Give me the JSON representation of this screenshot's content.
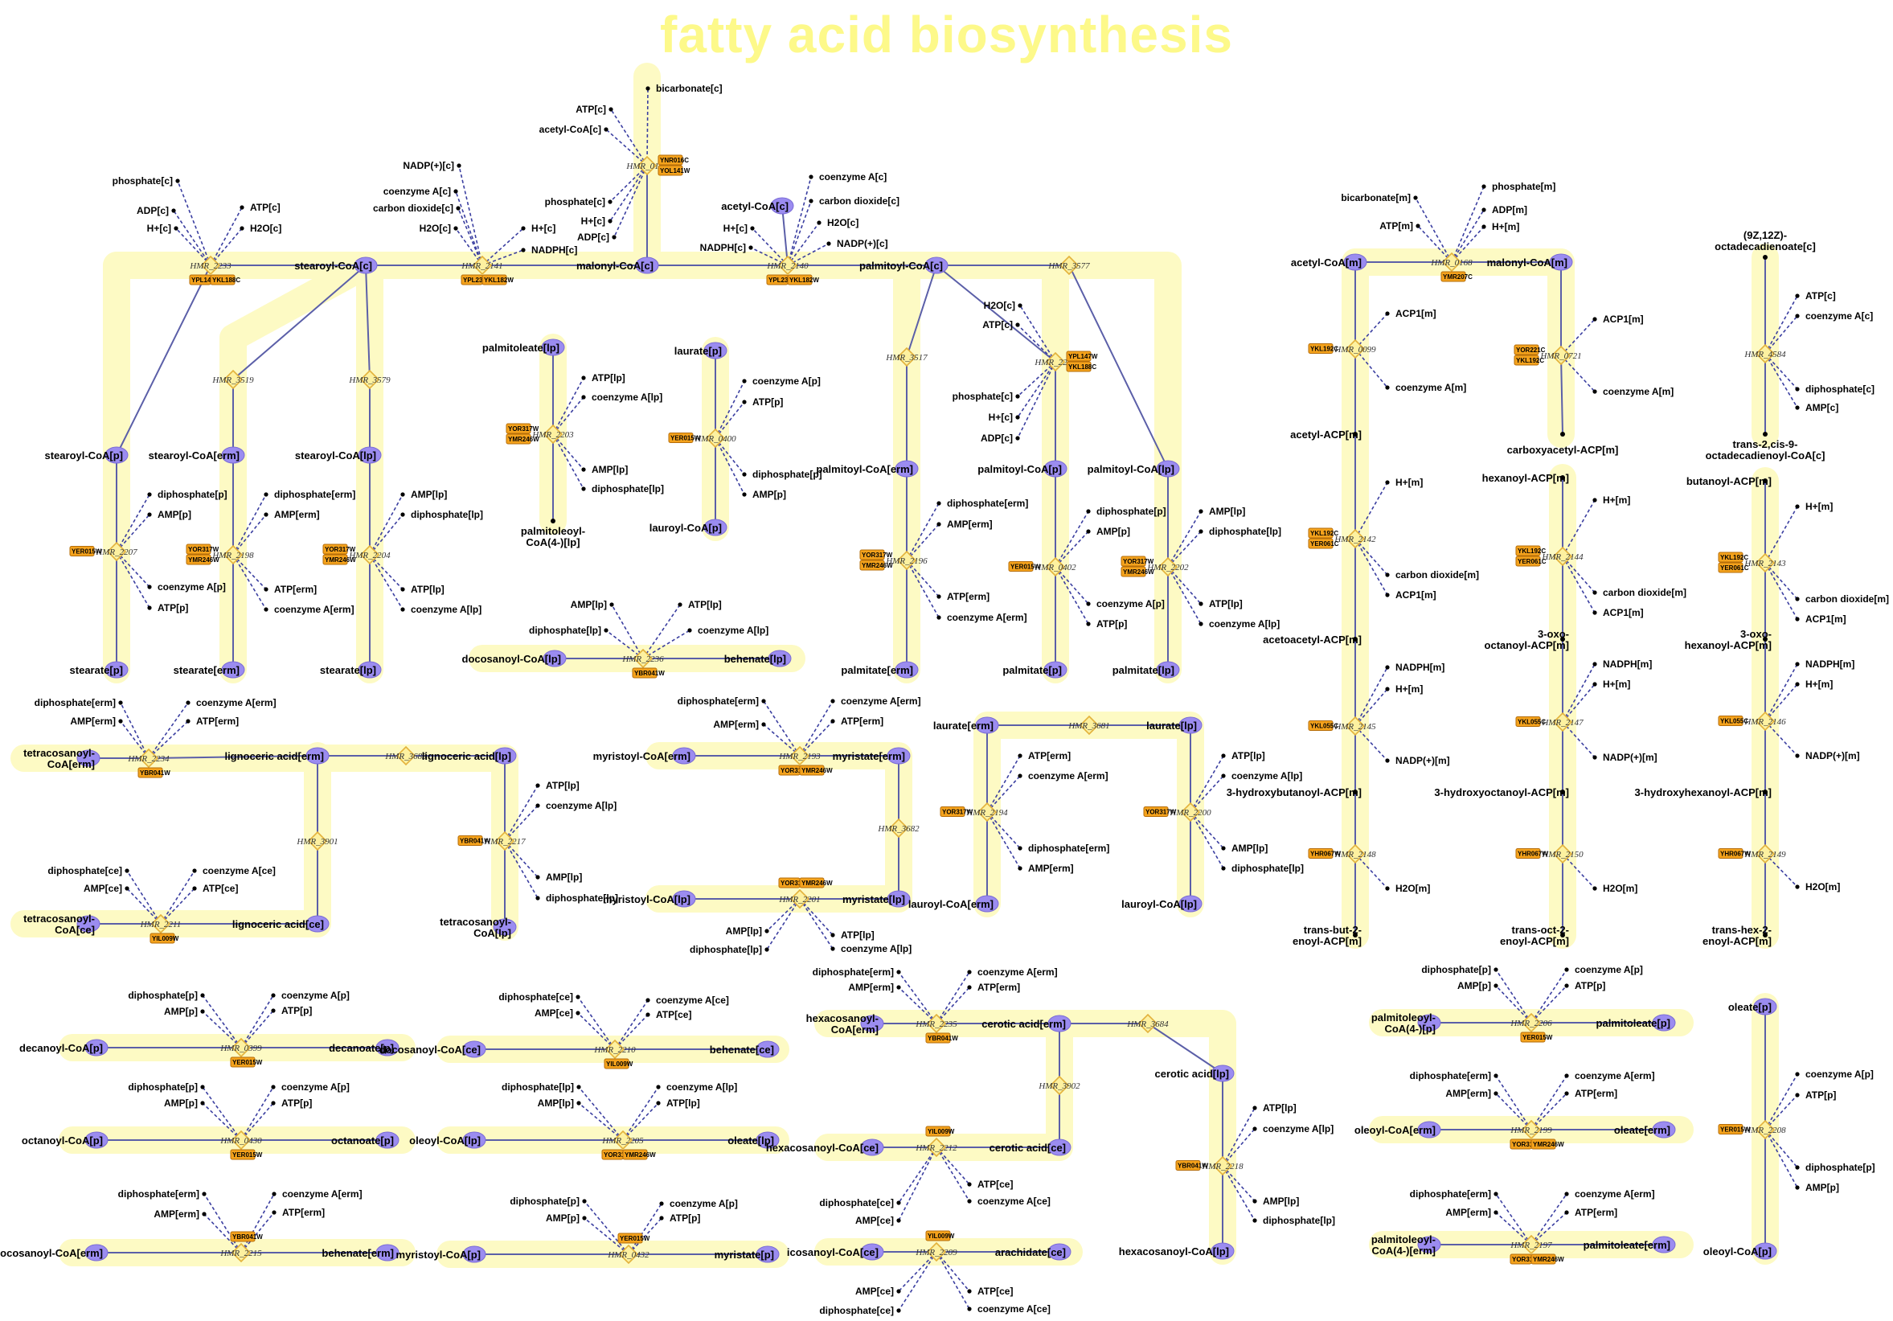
{
  "title": "fatty acid biosynthesis",
  "colors": {
    "highlight": "#fdfac4",
    "metabolite": "#9b8cf0",
    "reaction": "#fdf1a0",
    "gene": "#f4a21c",
    "edge": "#5b5fa8",
    "title": "#fdf98a"
  },
  "metabolites": [
    {
      "id": "stearoylCoA_c",
      "label": "stearoyl-CoA[c]"
    },
    {
      "id": "malonylCoA_c",
      "label": "malonyl-CoA[c]"
    },
    {
      "id": "palmitoylCoA_c",
      "label": "palmitoyl-CoA[c]"
    },
    {
      "id": "stearoylCoA_p",
      "label": "stearoyl-CoA[p]"
    },
    {
      "id": "stearoylCoA_erm",
      "label": "stearoyl-CoA[erm]"
    },
    {
      "id": "stearoylCoA_lp",
      "label": "stearoyl-CoA[lp]"
    },
    {
      "id": "stearate_p",
      "label": "stearate[p]"
    },
    {
      "id": "stearate_erm",
      "label": "stearate[erm]"
    },
    {
      "id": "stearate_lp",
      "label": "stearate[lp]"
    },
    {
      "id": "palmitoleate_lp",
      "label": "palmitoleate[lp]"
    },
    {
      "id": "palmitoleoylCoA_lp",
      "label": "palmitoleoyl-CoA(4-)[lp]"
    },
    {
      "id": "laurate_p",
      "label": "laurate[p]"
    },
    {
      "id": "lauroylCoA_p",
      "label": "lauroyl-CoA[p]"
    },
    {
      "id": "acetylCoA_c",
      "label": "acetyl-CoA[c]"
    },
    {
      "id": "palmitoylCoA_erm",
      "label": "palmitoyl-CoA[erm]"
    },
    {
      "id": "palmitoylCoA_p",
      "label": "palmitoyl-CoA[p]"
    },
    {
      "id": "palmitoylCoA_lp",
      "label": "palmitoyl-CoA[lp]"
    },
    {
      "id": "palmitate_erm",
      "label": "palmitate[erm]"
    },
    {
      "id": "palmitate_p",
      "label": "palmitate[p]"
    },
    {
      "id": "palmitate_lp",
      "label": "palmitate[lp]"
    },
    {
      "id": "docosanoylCoA_lp",
      "label": "docosanoyl-CoA[lp]"
    },
    {
      "id": "behenate_lp",
      "label": "behenate[lp]"
    },
    {
      "id": "acetylCoA_m",
      "label": "acetyl-CoA[m]"
    },
    {
      "id": "malonylCoA_m",
      "label": "malonyl-CoA[m]"
    },
    {
      "id": "tetracosanoylCoA_erm",
      "label": "tetracosanoyl-CoA[erm]"
    },
    {
      "id": "lignoceric_erm",
      "label": "lignoceric acid[erm]"
    },
    {
      "id": "lignoceric_lp",
      "label": "lignoceric acid[lp]"
    },
    {
      "id": "tetracosanoylCoA_lp",
      "label": "tetracosanoyl-CoA[lp]"
    },
    {
      "id": "tetracosanoylCoA_ce",
      "label": "tetracosanoyl-CoA[ce]"
    },
    {
      "id": "lignoceric_ce",
      "label": "lignoceric acid[ce]"
    },
    {
      "id": "myristoylCoA_erm",
      "label": "myristoyl-CoA[erm]"
    },
    {
      "id": "myristate_erm",
      "label": "myristate[erm]"
    },
    {
      "id": "myristoylCoA_lp",
      "label": "myristoyl-CoA[lp]"
    },
    {
      "id": "myristate_lp",
      "label": "myristate[lp]"
    },
    {
      "id": "laurate_erm",
      "label": "laurate[erm]"
    },
    {
      "id": "laurate_lp",
      "label": "laurate[lp]"
    },
    {
      "id": "lauroylCoA_erm",
      "label": "lauroyl-CoA[erm]"
    },
    {
      "id": "lauroylCoA_lp",
      "label": "lauroyl-CoA[lp]"
    },
    {
      "id": "decanoylCoA_p",
      "label": "decanoyl-CoA[p]"
    },
    {
      "id": "decanoate_p",
      "label": "decanoate[p]"
    },
    {
      "id": "octanoylCoA_p",
      "label": "octanoyl-CoA[p]"
    },
    {
      "id": "octanoate_p",
      "label": "octanoate[p]"
    },
    {
      "id": "docosanoylCoA_erm",
      "label": "docosanoyl-CoA[erm]"
    },
    {
      "id": "behenate_erm",
      "label": "behenate[erm]"
    },
    {
      "id": "docosanoylCoA_ce",
      "label": "docosanoyl-CoA[ce]"
    },
    {
      "id": "behenate_ce",
      "label": "behenate[ce]"
    },
    {
      "id": "oleoylCoA_lp",
      "label": "oleoyl-CoA[lp]"
    },
    {
      "id": "oleate_lp",
      "label": "oleate[lp]"
    },
    {
      "id": "myristoylCoA_p",
      "label": "myristoyl-CoA[p]"
    },
    {
      "id": "myristate_p",
      "label": "myristate[p]"
    },
    {
      "id": "hexacosanoylCoA_erm",
      "label": "hexacosanoyl-CoA[erm]"
    },
    {
      "id": "cerotic_erm",
      "label": "cerotic acid[erm]"
    },
    {
      "id": "cerotic_lp",
      "label": "cerotic acid[lp]"
    },
    {
      "id": "hexacosanoylCoA_ce",
      "label": "hexacosanoyl-CoA[ce]"
    },
    {
      "id": "cerotic_ce",
      "label": "cerotic acid[ce]"
    },
    {
      "id": "hexacosanoylCoA_lp",
      "label": "hexacosanoyl-CoA[lp]"
    },
    {
      "id": "icosanoylCoA_ce",
      "label": "icosanoyl-CoA[ce]"
    },
    {
      "id": "arachidate_ce",
      "label": "arachidate[ce]"
    },
    {
      "id": "palmitoleoylCoA_p",
      "label": "palmitoleoyl-CoA(4-)[p]"
    },
    {
      "id": "palmitoleate_p",
      "label": "palmitoleate[p]"
    },
    {
      "id": "oleoylCoA_erm",
      "label": "oleoyl-CoA[erm]"
    },
    {
      "id": "oleate_erm",
      "label": "oleate[erm]"
    },
    {
      "id": "palmitoleoylCoA_erm",
      "label": "palmitoleoyl-CoA(4-)[erm]"
    },
    {
      "id": "palmitoleate_erm",
      "label": "palmitoleate[erm]"
    },
    {
      "id": "oleate_p",
      "label": "oleate[p]"
    },
    {
      "id": "oleoylCoA_p",
      "label": "oleoyl-CoA[p]"
    },
    {
      "id": "acetylACP_m",
      "label": "acetyl-ACP[m]"
    },
    {
      "id": "carboxyacetylACP_m1",
      "label": "carboxyacetyl-ACP[m]"
    },
    {
      "id": "acetoacetylACP_m",
      "label": "acetoacetyl-ACP[m]"
    },
    {
      "id": "hydroxybutanoylACP_m",
      "label": "3-hydroxybutanoyl-ACP[m]"
    },
    {
      "id": "transbut2enoylACP_m",
      "label": "trans-but-2-enoyl-ACP[m]"
    },
    {
      "id": "hexanoylACP_m",
      "label": "hexanoyl-ACP[m]"
    },
    {
      "id": "oxooctanoylACP_m",
      "label": "3-oxo-octanoyl-ACP[m]"
    },
    {
      "id": "hydroxyoctanoylACP_m",
      "label": "3-hydroxyoctanoyl-ACP[m]"
    },
    {
      "id": "transoct2enoylACP_m",
      "label": "trans-oct-2-enoyl-ACP[m]"
    },
    {
      "id": "butanoylACP_m",
      "label": "butanoyl-ACP[m]"
    },
    {
      "id": "oxohexanoylACP_m",
      "label": "3-oxo-hexanoyl-ACP[m]"
    },
    {
      "id": "hydroxyhexanoylACP_m",
      "label": "3-hydroxyhexanoyl-ACP[m]"
    },
    {
      "id": "transhex2enoylACP_m",
      "label": "trans-hex-2-enoyl-ACP[m]"
    },
    {
      "id": "octadecadienoate_c",
      "label": "(9Z,12Z)-octadecadienoate[c]"
    },
    {
      "id": "octadecadienoylCoA_c",
      "label": "trans-2,cis-9-octadecadienoyl-CoA[c]"
    }
  ],
  "reactions": [
    {
      "id": "HMR_0109",
      "label": "HMR_0109",
      "genes": [
        "YNR016C",
        "YOL141W"
      ],
      "side": [
        "bicarbonate[c]",
        "ATP[c]",
        "acetyl-CoA[c]",
        "phosphate[c]",
        "H+[c]",
        "ADP[c]"
      ]
    },
    {
      "id": "HMR_2233",
      "label": "HMR_2233",
      "genes": [
        "YPL147W",
        "YKL188C"
      ],
      "side": [
        "phosphate[c]",
        "ADP[c]",
        "H+[c]",
        "ATP[c]",
        "H2O[c]"
      ]
    },
    {
      "id": "HMR_2141",
      "label": "HMR_2141",
      "genes": [
        "YPL231W",
        "YKL182W"
      ],
      "side": [
        "NADP(+)[c]",
        "coenzyme A[c]",
        "carbon dioxide[c]",
        "H2O[c]",
        "H+[c]",
        "NADPH[c]"
      ]
    },
    {
      "id": "HMR_2140",
      "label": "HMR_2140",
      "genes": [
        "YPL231W",
        "YKL182W"
      ],
      "side": [
        "coenzyme A[c]",
        "carbon dioxide[c]",
        "H2O[c]",
        "NADP(+)[c]",
        "H+[c]",
        "NADPH[c]"
      ]
    },
    {
      "id": "HMR_3577",
      "label": "HMR_3577",
      "genes": [],
      "side": []
    },
    {
      "id": "HMR_3519",
      "label": "HMR_3519",
      "genes": [],
      "side": []
    },
    {
      "id": "HMR_3579",
      "label": "HMR_3579",
      "genes": [],
      "side": []
    },
    {
      "id": "HMR_3517",
      "label": "HMR_3517",
      "genes": [],
      "side": []
    },
    {
      "id": "HMR_2221",
      "label": "HMR_2221",
      "genes": [
        "YPL147W",
        "YKL188C"
      ],
      "side": [
        "H2O[c]",
        "ATP[c]",
        "phosphate[c]",
        "H+[c]",
        "ADP[c]"
      ]
    },
    {
      "id": "HMR_2203",
      "label": "HMR_2203",
      "genes": [
        "YOR317W",
        "YMR246W"
      ],
      "side": [
        "ATP[lp]",
        "coenzyme A[lp]",
        "AMP[lp]",
        "diphosphate[lp]"
      ]
    },
    {
      "id": "HMR_0400",
      "label": "HMR_0400",
      "genes": [
        "YER015W"
      ],
      "side": [
        "coenzyme A[p]",
        "ATP[p]",
        "diphosphate[p]",
        "AMP[p]"
      ]
    },
    {
      "id": "HMR_2207",
      "label": "HMR_2207",
      "genes": [
        "YER015W"
      ],
      "side": [
        "diphosphate[p]",
        "AMP[p]",
        "coenzyme A[p]",
        "ATP[p]"
      ]
    },
    {
      "id": "HMR_2198",
      "label": "HMR_2198",
      "genes": [
        "YOR317W",
        "YMR246W"
      ],
      "side": [
        "diphosphate[erm]",
        "AMP[erm]",
        "ATP[erm]",
        "coenzyme A[erm]"
      ]
    },
    {
      "id": "HMR_2204",
      "label": "HMR_2204",
      "genes": [
        "YOR317W",
        "YMR246W"
      ],
      "side": [
        "AMP[lp]",
        "diphosphate[lp]",
        "ATP[lp]",
        "coenzyme A[lp]"
      ]
    },
    {
      "id": "HMR_2196",
      "label": "HMR_2196",
      "genes": [
        "YOR317W",
        "YMR246W"
      ],
      "side": [
        "diphosphate[erm]",
        "AMP[erm]",
        "ATP[erm]",
        "coenzyme A[erm]"
      ]
    },
    {
      "id": "HMR_0402",
      "label": "HMR_0402",
      "genes": [
        "YER015W"
      ],
      "side": [
        "diphosphate[p]",
        "AMP[p]",
        "coenzyme A[p]",
        "ATP[p]"
      ]
    },
    {
      "id": "HMR_2202",
      "label": "HMR_2202",
      "genes": [
        "YOR317W",
        "YMR246W"
      ],
      "side": [
        "AMP[lp]",
        "diphosphate[lp]",
        "ATP[lp]",
        "coenzyme A[lp]"
      ]
    },
    {
      "id": "HMR_2236",
      "label": "HMR_2236",
      "genes": [
        "YBR041W"
      ],
      "side": [
        "AMP[lp]",
        "diphosphate[lp]",
        "ATP[lp]",
        "coenzyme A[lp]"
      ]
    },
    {
      "id": "HMR_0168",
      "label": "HMR_0168",
      "genes": [
        "YMR207C"
      ],
      "side": [
        "bicarbonate[m]",
        "ATP[m]",
        "phosphate[m]",
        "ADP[m]",
        "H+[m]"
      ]
    },
    {
      "id": "HMR_0099",
      "label": "HMR_0099",
      "genes": [
        "YKL192C"
      ],
      "side": [
        "ACP1[m]",
        "coenzyme A[m]"
      ]
    },
    {
      "id": "HMR_0721",
      "label": "HMR_0721",
      "genes": [
        "YOR221C",
        "YKL192C"
      ],
      "side": [
        "ACP1[m]",
        "coenzyme A[m]"
      ]
    },
    {
      "id": "HMR_4584",
      "label": "HMR_4584",
      "genes": [],
      "side": [
        "ATP[c]",
        "coenzyme A[c]",
        "diphosphate[c]",
        "AMP[c]"
      ]
    },
    {
      "id": "HMR_2142",
      "label": "HMR_2142",
      "genes": [
        "YKL192C",
        "YER061C"
      ],
      "side": [
        "H+[m]",
        "carbon dioxide[m]",
        "ACP1[m]"
      ]
    },
    {
      "id": "HMR_2144",
      "label": "HMR_2144",
      "genes": [
        "YKL192C",
        "YER061C"
      ],
      "side": [
        "H+[m]",
        "carbon dioxide[m]",
        "ACP1[m]"
      ]
    },
    {
      "id": "HMR_2143",
      "label": "HMR_2143",
      "genes": [
        "YKL192C",
        "YER061C"
      ],
      "side": [
        "H+[m]",
        "carbon dioxide[m]",
        "ACP1[m]"
      ]
    },
    {
      "id": "HMR_2145",
      "label": "HMR_2145",
      "genes": [
        "YKL055C"
      ],
      "side": [
        "NADPH[m]",
        "H+[m]",
        "NADP(+)[m]"
      ]
    },
    {
      "id": "HMR_2147",
      "label": "HMR_2147",
      "genes": [
        "YKL055C"
      ],
      "side": [
        "NADPH[m]",
        "H+[m]",
        "NADP(+)[m]"
      ]
    },
    {
      "id": "HMR_2146",
      "label": "HMR_2146",
      "genes": [
        "YKL055C"
      ],
      "side": [
        "NADPH[m]",
        "H+[m]",
        "NADP(+)[m]"
      ]
    },
    {
      "id": "HMR_2148",
      "label": "HMR_2148",
      "genes": [
        "YHR067W"
      ],
      "side": [
        "H2O[m]"
      ]
    },
    {
      "id": "HMR_2150",
      "label": "HMR_2150",
      "genes": [
        "YHR067W"
      ],
      "side": [
        "H2O[m]"
      ]
    },
    {
      "id": "HMR_2149",
      "label": "HMR_2149",
      "genes": [
        "YHR067W"
      ],
      "side": [
        "H2O[m]"
      ]
    },
    {
      "id": "HMR_2234",
      "label": "HMR_2234",
      "genes": [
        "YBR041W"
      ],
      "side": [
        "diphosphate[erm]",
        "AMP[erm]",
        "coenzyme A[erm]",
        "ATP[erm]"
      ]
    },
    {
      "id": "HMR_3683",
      "label": "HMR_3683",
      "genes": [],
      "side": []
    },
    {
      "id": "HMR_3901",
      "label": "HMR_3901",
      "genes": [],
      "side": []
    },
    {
      "id": "HMR_2217",
      "label": "HMR_2217",
      "genes": [
        "YBR041W"
      ],
      "side": [
        "ATP[lp]",
        "coenzyme A[lp]",
        "AMP[lp]",
        "diphosphate[lp]"
      ]
    },
    {
      "id": "HMR_2211",
      "label": "HMR_2211",
      "genes": [
        "YIL009W"
      ],
      "side": [
        "diphosphate[ce]",
        "AMP[ce]",
        "coenzyme A[ce]",
        "ATP[ce]"
      ]
    },
    {
      "id": "HMR_2193",
      "label": "HMR_2193",
      "genes": [
        "YOR317W",
        "YMR246W"
      ],
      "side": [
        "diphosphate[erm]",
        "AMP[erm]",
        "coenzyme A[erm]",
        "ATP[erm]"
      ]
    },
    {
      "id": "HMR_3682",
      "label": "HMR_3682",
      "genes": [],
      "side": []
    },
    {
      "id": "HMR_2201",
      "label": "HMR_2201",
      "genes": [
        "YOR317W",
        "YMR246W"
      ],
      "side": [
        "AMP[lp]",
        "diphosphate[lp]",
        "ATP[lp]",
        "coenzyme A[lp]"
      ]
    },
    {
      "id": "HMR_3681",
      "label": "HMR_3681",
      "genes": [],
      "side": []
    },
    {
      "id": "HMR_2194",
      "label": "HMR_2194",
      "genes": [
        "YOR317W"
      ],
      "side": [
        "ATP[erm]",
        "coenzyme A[erm]",
        "diphosphate[erm]",
        "AMP[erm]"
      ]
    },
    {
      "id": "HMR_2200",
      "label": "HMR_2200",
      "genes": [
        "YOR317W"
      ],
      "side": [
        "ATP[lp]",
        "coenzyme A[lp]",
        "AMP[lp]",
        "diphosphate[lp]"
      ]
    },
    {
      "id": "HMR_0399",
      "label": "HMR_0399",
      "genes": [
        "YER015W"
      ],
      "side": [
        "diphosphate[p]",
        "AMP[p]",
        "coenzyme A[p]",
        "ATP[p]"
      ]
    },
    {
      "id": "HMR_0430",
      "label": "HMR_0430",
      "genes": [
        "YER015W"
      ],
      "side": [
        "diphosphate[p]",
        "AMP[p]",
        "coenzyme A[p]",
        "ATP[p]"
      ]
    },
    {
      "id": "HMR_2235",
      "label": "HMR_2235",
      "genes": [
        "YBR041W"
      ],
      "side": [
        "diphosphate[erm]",
        "AMP[erm]",
        "coenzyme A[erm]",
        "ATP[erm]"
      ]
    },
    {
      "id": "HMR_2210",
      "label": "HMR_2210",
      "genes": [
        "YIL009W"
      ],
      "side": [
        "diphosphate[ce]",
        "AMP[ce]",
        "coenzyme A[ce]",
        "ATP[ce]"
      ]
    },
    {
      "id": "HMR_2205",
      "label": "HMR_2205",
      "genes": [
        "YOR317W",
        "YMR246W"
      ],
      "side": [
        "diphosphate[lp]",
        "AMP[lp]",
        "coenzyme A[lp]",
        "ATP[lp]"
      ]
    },
    {
      "id": "HMR_0432",
      "label": "HMR_0432",
      "genes": [
        "YER015W"
      ],
      "side": [
        "diphosphate[p]",
        "AMP[p]",
        "coenzyme A[p]",
        "ATP[p]"
      ]
    },
    {
      "id": "HMR_2215",
      "label": "HMR_2215",
      "genes": [
        "YBR041W"
      ],
      "side": [
        "diphosphate[erm]",
        "AMP[erm]",
        "coenzyme A[erm]",
        "ATP[erm]"
      ]
    },
    {
      "id": "HMR_3684",
      "label": "HMR_3684",
      "genes": [],
      "side": []
    },
    {
      "id": "HMR_3902",
      "label": "HMR_3902",
      "genes": [],
      "side": []
    },
    {
      "id": "HMR_2212",
      "label": "HMR_2212",
      "genes": [
        "YIL009W"
      ],
      "side": [
        "diphosphate[ce]",
        "AMP[ce]",
        "ATP[ce]",
        "coenzyme A[ce]"
      ]
    },
    {
      "id": "HMR_2218",
      "label": "HMR_2218",
      "genes": [
        "YBR041W"
      ],
      "side": [
        "ATP[lp]",
        "coenzyme A[lp]",
        "AMP[lp]",
        "diphosphate[lp]"
      ]
    },
    {
      "id": "HMR_2209",
      "label": "HMR_2209",
      "genes": [
        "YIL009W"
      ],
      "side": [
        "AMP[ce]",
        "diphosphate[ce]",
        "ATP[ce]",
        "coenzyme A[ce]"
      ]
    },
    {
      "id": "HMR_2206",
      "label": "HMR_2206",
      "genes": [
        "YER015W"
      ],
      "side": [
        "diphosphate[p]",
        "AMP[p]",
        "coenzyme A[p]",
        "ATP[p]"
      ]
    },
    {
      "id": "HMR_2199",
      "label": "HMR_2199",
      "genes": [
        "YOR317W",
        "YMR246W"
      ],
      "side": [
        "diphosphate[erm]",
        "AMP[erm]",
        "coenzyme A[erm]",
        "ATP[erm]"
      ]
    },
    {
      "id": "HMR_2197",
      "label": "HMR_2197",
      "genes": [
        "YOR317W",
        "YMR246W"
      ],
      "side": [
        "diphosphate[erm]",
        "AMP[erm]",
        "coenzyme A[erm]",
        "ATP[erm]"
      ]
    },
    {
      "id": "HMR_2208",
      "label": "HMR_2208",
      "genes": [
        "YER015W"
      ],
      "side": [
        "coenzyme A[p]",
        "ATP[p]",
        "diphosphate[p]",
        "AMP[p]"
      ]
    }
  ]
}
